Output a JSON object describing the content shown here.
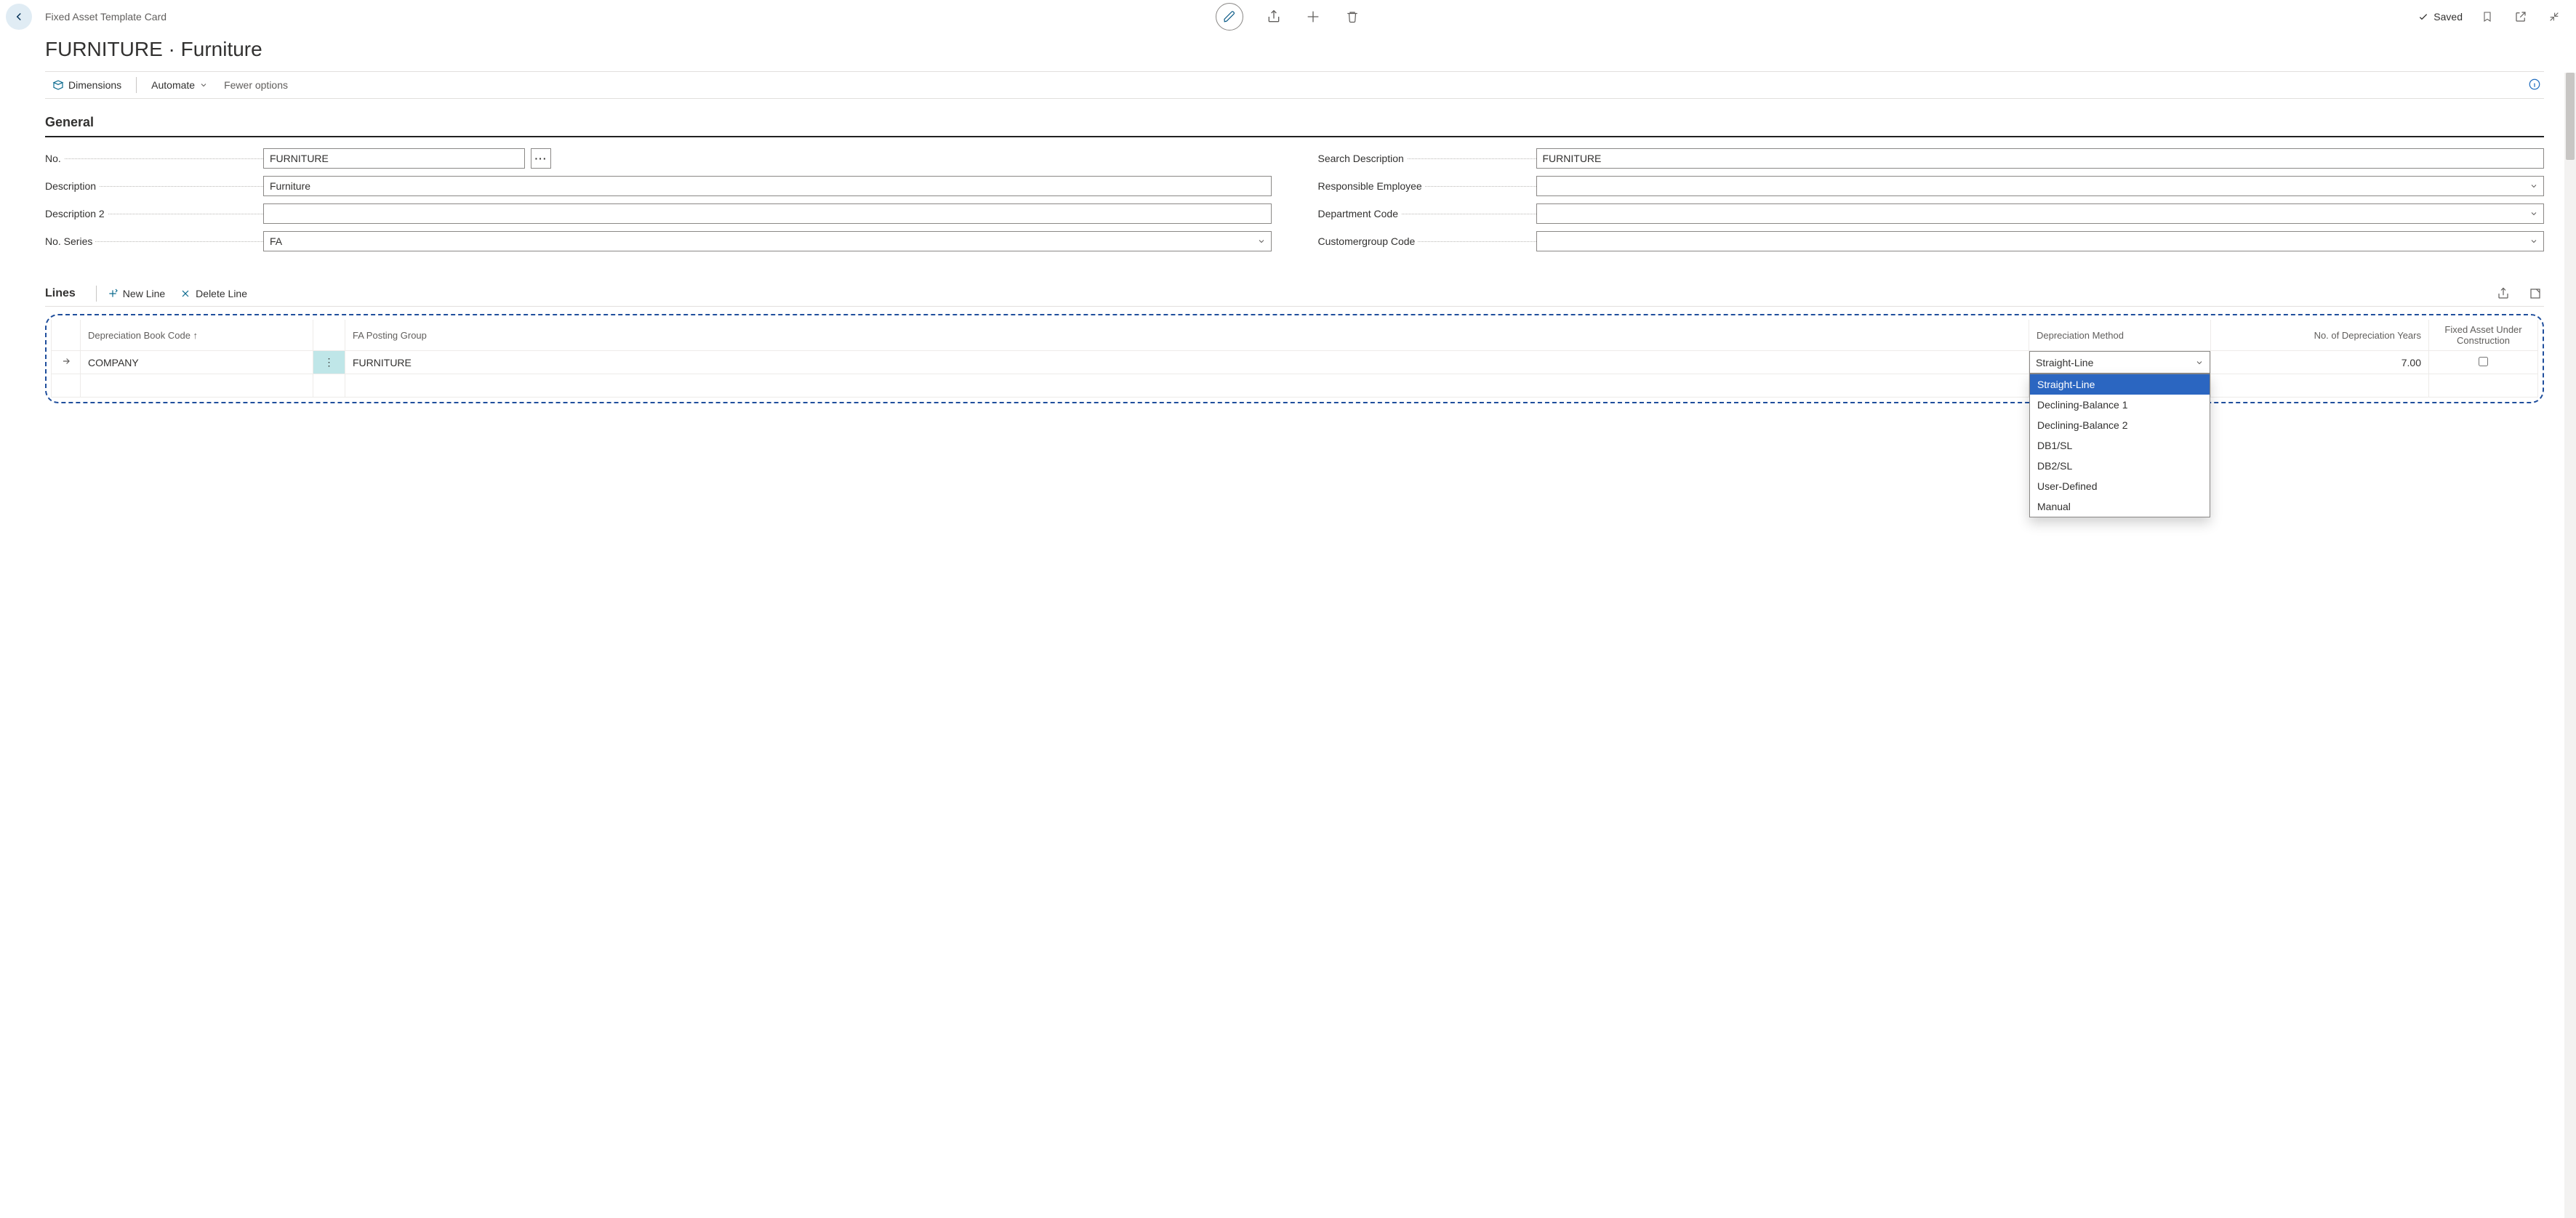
{
  "breadcrumb": "Fixed Asset Template Card",
  "page_title": "FURNITURE · Furniture",
  "saved_label": "Saved",
  "actions": {
    "dimensions": "Dimensions",
    "automate": "Automate",
    "fewer_options": "Fewer options"
  },
  "sections": {
    "general": {
      "title": "General",
      "fields_left": {
        "no_label": "No.",
        "no_value": "FURNITURE",
        "description_label": "Description",
        "description_value": "Furniture",
        "description2_label": "Description 2",
        "description2_value": "",
        "no_series_label": "No. Series",
        "no_series_value": "FA"
      },
      "fields_right": {
        "search_desc_label": "Search Description",
        "search_desc_value": "FURNITURE",
        "responsible_emp_label": "Responsible Employee",
        "responsible_emp_value": "",
        "dept_code_label": "Department Code",
        "dept_code_value": "",
        "custgroup_label": "Customergroup Code",
        "custgroup_value": ""
      }
    },
    "lines": {
      "title": "Lines",
      "new_line": "New Line",
      "delete_line": "Delete Line",
      "columns": {
        "dep_book_code": "Depreciation Book Code ↑",
        "fa_posting_group": "FA Posting Group",
        "dep_method": "Depreciation Method",
        "dep_years": "No. of Depreciation Years",
        "fa_under_construction": "Fixed Asset Under Construction"
      },
      "rows": [
        {
          "dep_book_code": "COMPANY",
          "fa_posting_group": "FURNITURE",
          "dep_method": "Straight-Line",
          "dep_years": "7.00",
          "fa_under_construction": false
        }
      ],
      "dep_method_options": [
        "Straight-Line",
        "Declining-Balance 1",
        "Declining-Balance 2",
        "DB1/SL",
        "DB2/SL",
        "User-Defined",
        "Manual"
      ],
      "dep_method_selected": "Straight-Line"
    }
  }
}
